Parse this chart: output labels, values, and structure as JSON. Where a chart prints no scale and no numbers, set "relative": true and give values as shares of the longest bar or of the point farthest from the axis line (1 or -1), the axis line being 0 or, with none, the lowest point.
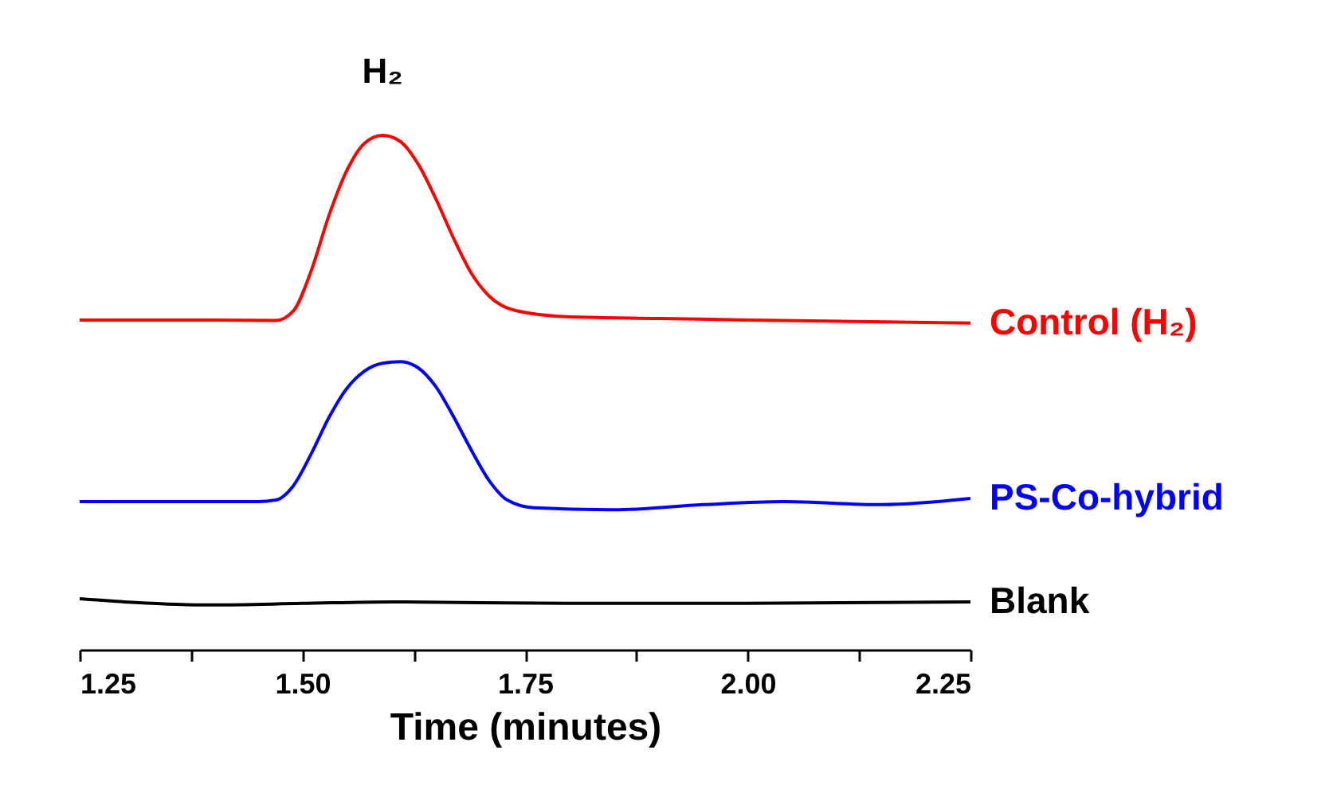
{
  "chart_data": {
    "type": "line",
    "relative": true,
    "xlabel": "Time (minutes)",
    "xlim": [
      1.25,
      2.25
    ],
    "xticks": [
      {
        "value": 1.25,
        "label": "1.25"
      },
      {
        "value": 1.375,
        "label": null
      },
      {
        "value": 1.5,
        "label": "1.50"
      },
      {
        "value": 1.625,
        "label": null
      },
      {
        "value": 1.75,
        "label": "1.75"
      },
      {
        "value": 1.875,
        "label": null
      },
      {
        "value": 2.0,
        "label": "2.00"
      },
      {
        "value": 2.125,
        "label": null
      },
      {
        "value": 2.25,
        "label": "2.25"
      }
    ],
    "grid": false,
    "legend": false,
    "marker": "none",
    "line_style": "solid",
    "annotations": [
      {
        "text": "H₂",
        "x": 1.59,
        "y": 1.0
      }
    ],
    "series": [
      {
        "name": "Control (H₂)",
        "color": "#ff0000",
        "x": [
          1.25,
          1.4,
          1.47,
          1.49,
          1.51,
          1.53,
          1.55,
          1.57,
          1.59,
          1.61,
          1.63,
          1.65,
          1.67,
          1.69,
          1.71,
          1.74,
          1.8,
          1.9,
          2.0,
          2.25
        ],
        "values": [
          0.641,
          0.641,
          0.64,
          0.659,
          0.737,
          0.845,
          0.932,
          0.985,
          1.0,
          0.988,
          0.944,
          0.876,
          0.799,
          0.731,
          0.687,
          0.659,
          0.647,
          0.644,
          0.641,
          0.635
        ]
      },
      {
        "name": "PS-Co-hybrid",
        "color": "#0000ff",
        "x": [
          1.25,
          1.45,
          1.47,
          1.49,
          1.51,
          1.53,
          1.55,
          1.57,
          1.59,
          1.61,
          1.63,
          1.65,
          1.67,
          1.69,
          1.71,
          1.73,
          1.76,
          1.85,
          1.95,
          2.04,
          2.15,
          2.25
        ],
        "values": [
          0.288,
          0.288,
          0.291,
          0.319,
          0.381,
          0.452,
          0.508,
          0.542,
          0.557,
          0.56,
          0.548,
          0.511,
          0.452,
          0.387,
          0.328,
          0.291,
          0.276,
          0.272,
          0.282,
          0.288,
          0.282,
          0.294
        ]
      },
      {
        "name": "Blank",
        "color": "#000000",
        "x": [
          1.25,
          1.3,
          1.4,
          1.5,
          1.6,
          1.8,
          2.0,
          2.25
        ],
        "values": [
          0.099,
          0.093,
          0.087,
          0.09,
          0.093,
          0.09,
          0.09,
          0.093
        ]
      }
    ]
  }
}
